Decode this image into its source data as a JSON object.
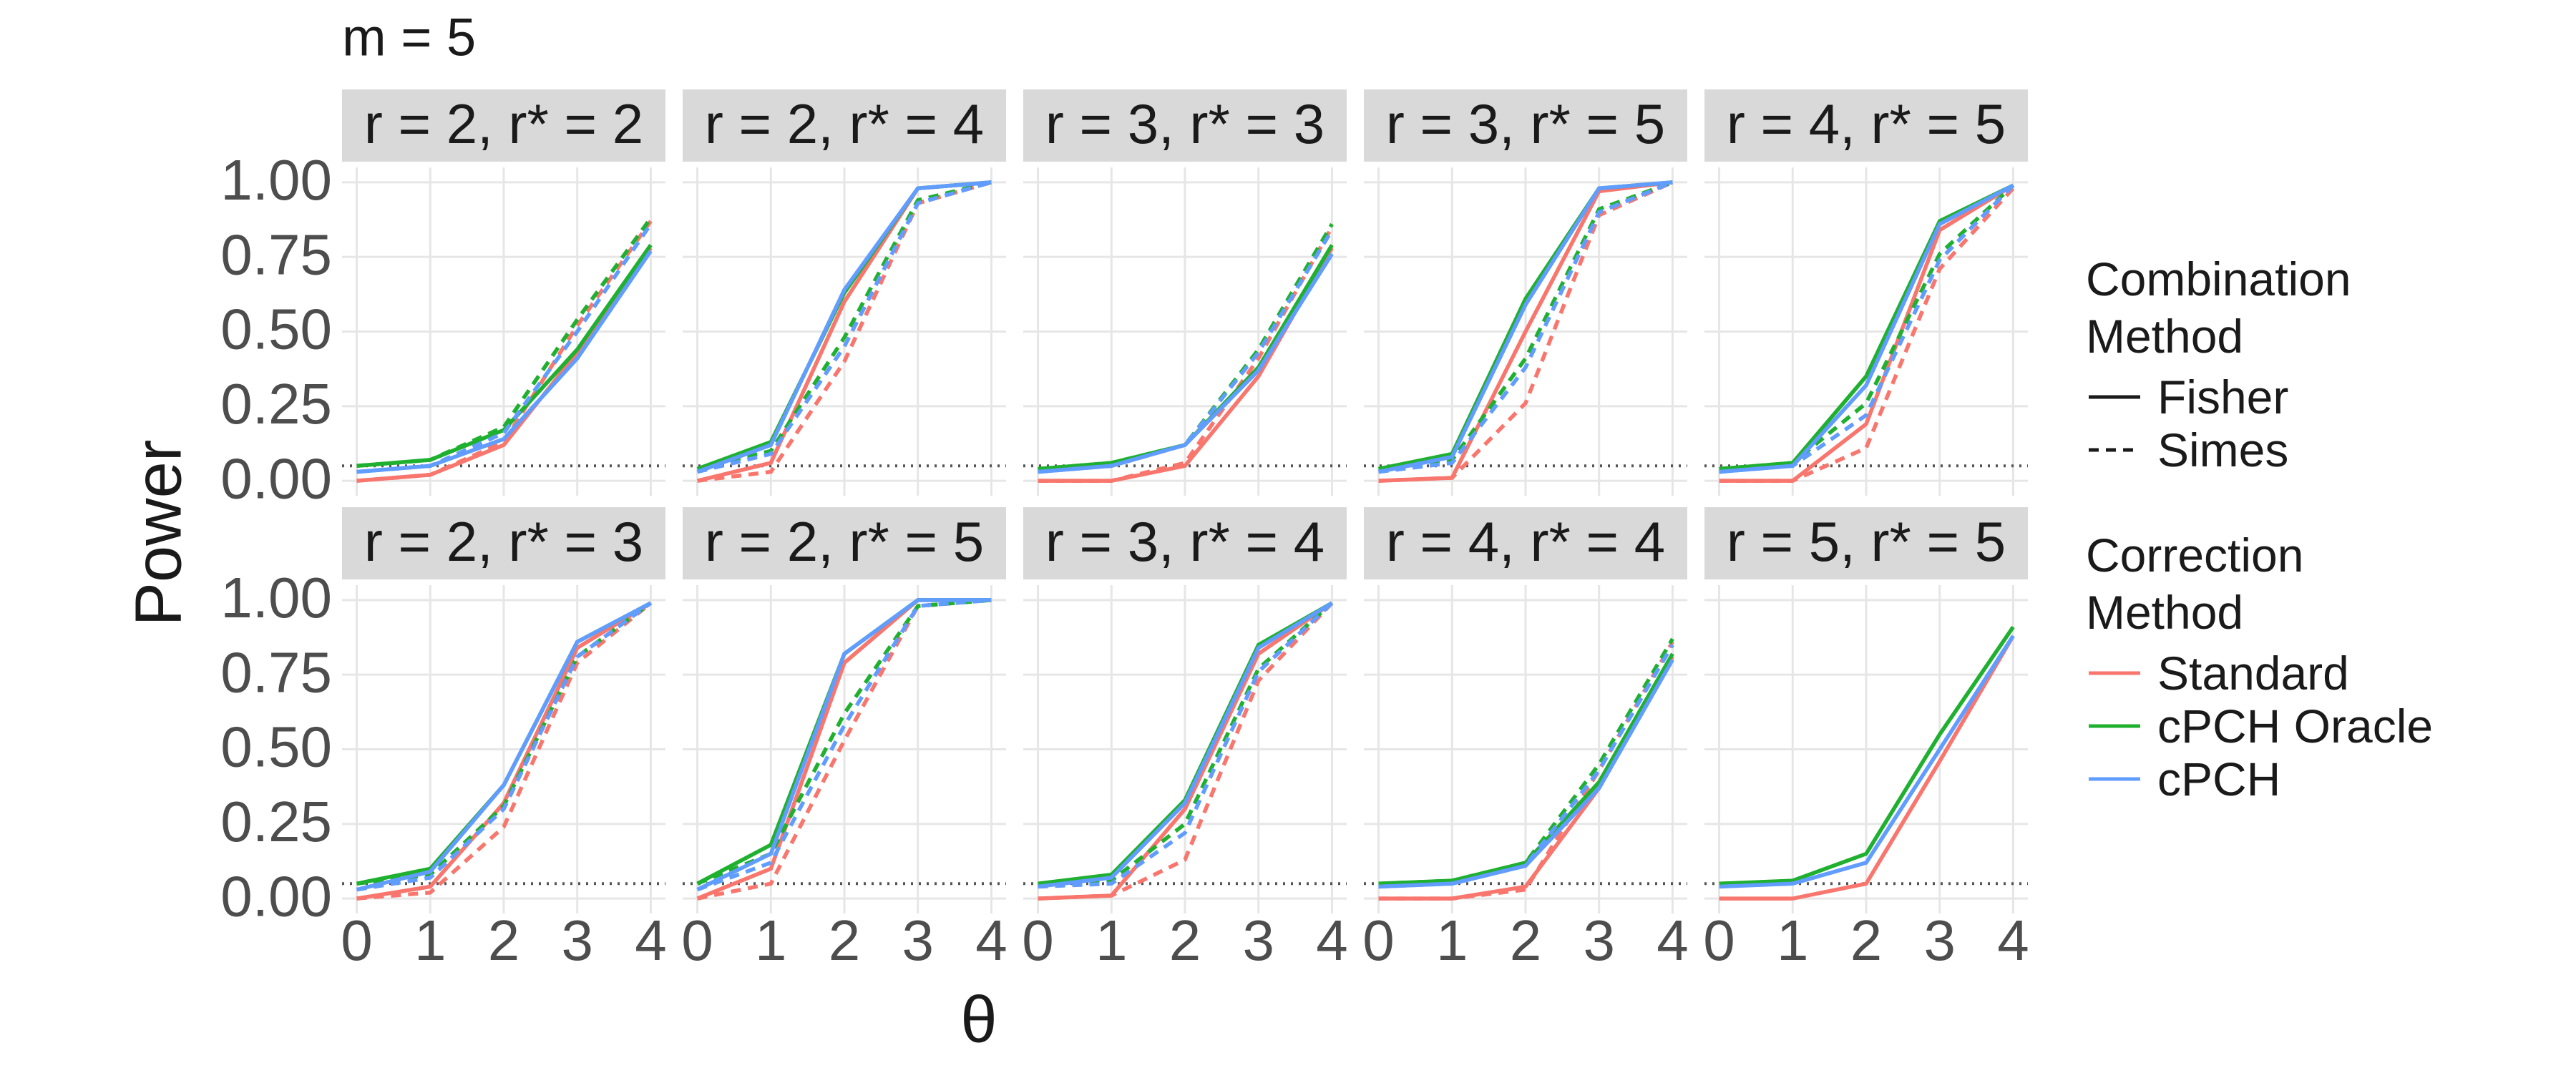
{
  "chart_data": {
    "type": "line",
    "title": "m = 5",
    "x_label": "θ",
    "y_label": "Power",
    "x": [
      0,
      1,
      2,
      3,
      4
    ],
    "xlim": [
      -0.2,
      4.2
    ],
    "ylim": [
      -0.05,
      1.05
    ],
    "xticks": [
      0,
      1,
      2,
      3,
      4
    ],
    "yticks": [
      {
        "value": 0,
        "label": "0.00"
      },
      {
        "value": 0.25,
        "label": "0.25"
      },
      {
        "value": 0.5,
        "label": "0.50"
      },
      {
        "value": 0.75,
        "label": "0.75"
      },
      {
        "value": 1,
        "label": "1.00"
      }
    ],
    "grid": true,
    "reference_line": 0.05,
    "legend": {
      "position": "right",
      "combination": {
        "title": "Combination Method",
        "entries": [
          {
            "name": "Fisher",
            "linestyle": "solid"
          },
          {
            "name": "Simes",
            "linestyle": "dashed"
          }
        ]
      },
      "correction": {
        "title": "Correction Method",
        "entries": [
          {
            "name": "Standard",
            "color": "#f8766d"
          },
          {
            "name": "cPCH Oracle",
            "color": "#1fb030"
          },
          {
            "name": "cPCH",
            "color": "#619cff"
          }
        ]
      }
    },
    "panels": [
      {
        "title": "r = 2, r* = 2",
        "series": [
          {
            "correction": "Standard",
            "combination": "Fisher",
            "values": [
              0,
              0.02,
              0.12,
              0.43,
              0.78
            ]
          },
          {
            "correction": "Standard",
            "combination": "Simes",
            "values": [
              0,
              0.02,
              0.13,
              0.52,
              0.87
            ]
          },
          {
            "correction": "cPCH Oracle",
            "combination": "Fisher",
            "values": [
              0.05,
              0.07,
              0.17,
              0.44,
              0.79
            ]
          },
          {
            "correction": "cPCH Oracle",
            "combination": "Simes",
            "values": [
              0.05,
              0.07,
              0.18,
              0.54,
              0.88
            ]
          },
          {
            "correction": "cPCH",
            "combination": "Fisher",
            "values": [
              0.03,
              0.05,
              0.14,
              0.41,
              0.77
            ]
          },
          {
            "correction": "cPCH",
            "combination": "Simes",
            "values": [
              0.03,
              0.05,
              0.16,
              0.5,
              0.86
            ]
          }
        ]
      },
      {
        "title": "r = 2, r* = 4",
        "series": [
          {
            "correction": "Standard",
            "combination": "Fisher",
            "values": [
              0,
              0.06,
              0.6,
              0.98,
              1
            ]
          },
          {
            "correction": "Standard",
            "combination": "Simes",
            "values": [
              0,
              0.03,
              0.4,
              0.93,
              1
            ]
          },
          {
            "correction": "cPCH Oracle",
            "combination": "Fisher",
            "values": [
              0.04,
              0.13,
              0.63,
              0.98,
              1
            ]
          },
          {
            "correction": "cPCH Oracle",
            "combination": "Simes",
            "values": [
              0.04,
              0.1,
              0.48,
              0.94,
              1
            ]
          },
          {
            "correction": "cPCH",
            "combination": "Fisher",
            "values": [
              0.03,
              0.12,
              0.64,
              0.98,
              1
            ]
          },
          {
            "correction": "cPCH",
            "combination": "Simes",
            "values": [
              0.03,
              0.09,
              0.45,
              0.93,
              1
            ]
          }
        ]
      },
      {
        "title": "r = 3, r* = 3",
        "series": [
          {
            "correction": "Standard",
            "combination": "Fisher",
            "values": [
              0,
              0,
              0.05,
              0.35,
              0.78
            ]
          },
          {
            "correction": "Standard",
            "combination": "Simes",
            "values": [
              0,
              0,
              0.06,
              0.41,
              0.85
            ]
          },
          {
            "correction": "cPCH Oracle",
            "combination": "Fisher",
            "values": [
              0.04,
              0.06,
              0.12,
              0.38,
              0.79
            ]
          },
          {
            "correction": "cPCH Oracle",
            "combination": "Simes",
            "values": [
              0.04,
              0.06,
              0.12,
              0.44,
              0.86
            ]
          },
          {
            "correction": "cPCH",
            "combination": "Fisher",
            "values": [
              0.03,
              0.05,
              0.12,
              0.37,
              0.76
            ]
          },
          {
            "correction": "cPCH",
            "combination": "Simes",
            "values": [
              0.03,
              0.05,
              0.12,
              0.43,
              0.84
            ]
          }
        ]
      },
      {
        "title": "r = 3, r* = 5",
        "series": [
          {
            "correction": "Standard",
            "combination": "Fisher",
            "values": [
              0,
              0.01,
              0.5,
              0.97,
              1
            ]
          },
          {
            "correction": "Standard",
            "combination": "Simes",
            "values": [
              0,
              0.01,
              0.26,
              0.89,
              1
            ]
          },
          {
            "correction": "cPCH Oracle",
            "combination": "Fisher",
            "values": [
              0.04,
              0.09,
              0.61,
              0.98,
              1
            ]
          },
          {
            "correction": "cPCH Oracle",
            "combination": "Simes",
            "values": [
              0.04,
              0.07,
              0.41,
              0.91,
              1
            ]
          },
          {
            "correction": "cPCH",
            "combination": "Fisher",
            "values": [
              0.03,
              0.08,
              0.59,
              0.98,
              1
            ]
          },
          {
            "correction": "cPCH",
            "combination": "Simes",
            "values": [
              0.03,
              0.06,
              0.38,
              0.9,
              1
            ]
          }
        ]
      },
      {
        "title": "r = 4, r* = 5",
        "series": [
          {
            "correction": "Standard",
            "combination": "Fisher",
            "values": [
              0,
              0,
              0.19,
              0.84,
              0.99
            ]
          },
          {
            "correction": "Standard",
            "combination": "Simes",
            "values": [
              0,
              0,
              0.11,
              0.71,
              0.98
            ]
          },
          {
            "correction": "cPCH Oracle",
            "combination": "Fisher",
            "values": [
              0.04,
              0.06,
              0.35,
              0.87,
              0.99
            ]
          },
          {
            "correction": "cPCH Oracle",
            "combination": "Simes",
            "values": [
              0.04,
              0.06,
              0.26,
              0.76,
              0.99
            ]
          },
          {
            "correction": "cPCH",
            "combination": "Fisher",
            "values": [
              0.03,
              0.05,
              0.32,
              0.86,
              0.99
            ]
          },
          {
            "correction": "cPCH",
            "combination": "Simes",
            "values": [
              0.03,
              0.05,
              0.22,
              0.74,
              0.99
            ]
          }
        ]
      },
      {
        "title": "r = 2, r* = 3",
        "series": [
          {
            "correction": "Standard",
            "combination": "Fisher",
            "values": [
              0,
              0.04,
              0.32,
              0.84,
              0.99
            ]
          },
          {
            "correction": "Standard",
            "combination": "Simes",
            "values": [
              0,
              0.02,
              0.24,
              0.79,
              0.99
            ]
          },
          {
            "correction": "cPCH Oracle",
            "combination": "Fisher",
            "values": [
              0.05,
              0.1,
              0.38,
              0.86,
              0.99
            ]
          },
          {
            "correction": "cPCH Oracle",
            "combination": "Simes",
            "values": [
              0.05,
              0.08,
              0.31,
              0.81,
              0.99
            ]
          },
          {
            "correction": "cPCH",
            "combination": "Fisher",
            "values": [
              0.03,
              0.09,
              0.38,
              0.86,
              0.99
            ]
          },
          {
            "correction": "cPCH",
            "combination": "Simes",
            "values": [
              0.03,
              0.07,
              0.3,
              0.81,
              0.99
            ]
          }
        ]
      },
      {
        "title": "r = 2, r* = 5",
        "series": [
          {
            "correction": "Standard",
            "combination": "Fisher",
            "values": [
              0,
              0.1,
              0.79,
              1,
              1
            ]
          },
          {
            "correction": "Standard",
            "combination": "Simes",
            "values": [
              0,
              0.05,
              0.53,
              0.98,
              1
            ]
          },
          {
            "correction": "cPCH Oracle",
            "combination": "Fisher",
            "values": [
              0.05,
              0.18,
              0.82,
              1,
              1
            ]
          },
          {
            "correction": "cPCH Oracle",
            "combination": "Simes",
            "values": [
              0.05,
              0.15,
              0.62,
              0.98,
              1
            ]
          },
          {
            "correction": "cPCH",
            "combination": "Fisher",
            "values": [
              0.03,
              0.15,
              0.82,
              1,
              1
            ]
          },
          {
            "correction": "cPCH",
            "combination": "Simes",
            "values": [
              0.03,
              0.12,
              0.58,
              0.98,
              1
            ]
          }
        ]
      },
      {
        "title": "r = 3, r* = 4",
        "series": [
          {
            "correction": "Standard",
            "combination": "Fisher",
            "values": [
              0,
              0.01,
              0.3,
              0.82,
              0.99
            ]
          },
          {
            "correction": "Standard",
            "combination": "Simes",
            "values": [
              0,
              0.01,
              0.13,
              0.73,
              0.99
            ]
          },
          {
            "correction": "cPCH Oracle",
            "combination": "Fisher",
            "values": [
              0.05,
              0.08,
              0.33,
              0.85,
              0.99
            ]
          },
          {
            "correction": "cPCH Oracle",
            "combination": "Simes",
            "values": [
              0.05,
              0.06,
              0.25,
              0.77,
              0.99
            ]
          },
          {
            "correction": "cPCH",
            "combination": "Fisher",
            "values": [
              0.04,
              0.07,
              0.32,
              0.84,
              0.99
            ]
          },
          {
            "correction": "cPCH",
            "combination": "Simes",
            "values": [
              0.04,
              0.05,
              0.22,
              0.76,
              0.99
            ]
          }
        ]
      },
      {
        "title": "r = 4, r* = 4",
        "series": [
          {
            "correction": "Standard",
            "combination": "Fisher",
            "values": [
              0,
              0,
              0.04,
              0.37,
              0.81
            ]
          },
          {
            "correction": "Standard",
            "combination": "Simes",
            "values": [
              0,
              0,
              0.03,
              0.43,
              0.86
            ]
          },
          {
            "correction": "cPCH Oracle",
            "combination": "Fisher",
            "values": [
              0.05,
              0.06,
              0.12,
              0.39,
              0.82
            ]
          },
          {
            "correction": "cPCH Oracle",
            "combination": "Simes",
            "values": [
              0.05,
              0.06,
              0.12,
              0.45,
              0.87
            ]
          },
          {
            "correction": "cPCH",
            "combination": "Fisher",
            "values": [
              0.04,
              0.05,
              0.11,
              0.37,
              0.8
            ]
          },
          {
            "correction": "cPCH",
            "combination": "Simes",
            "values": [
              0.04,
              0.05,
              0.11,
              0.43,
              0.85
            ]
          }
        ]
      },
      {
        "title": "r = 5, r* = 5",
        "series": [
          {
            "correction": "Standard",
            "combination": "Fisher",
            "values": [
              0,
              0,
              0.05,
              0.46,
              0.88
            ]
          },
          {
            "correction": "cPCH Oracle",
            "combination": "Fisher",
            "values": [
              0.05,
              0.06,
              0.15,
              0.55,
              0.91
            ]
          },
          {
            "correction": "cPCH",
            "combination": "Fisher",
            "values": [
              0.04,
              0.05,
              0.12,
              0.5,
              0.88
            ]
          }
        ]
      }
    ]
  }
}
